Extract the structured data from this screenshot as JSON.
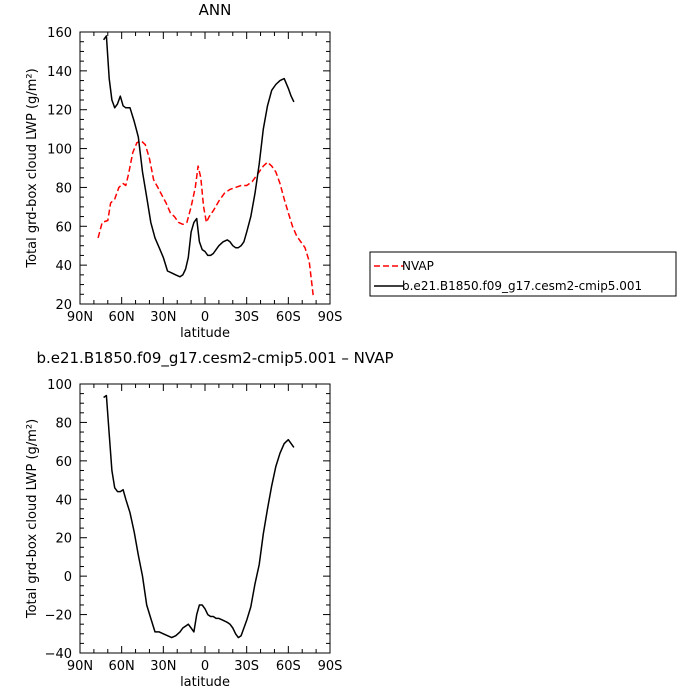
{
  "chart_data": [
    {
      "type": "line",
      "title": "ANN",
      "xlabel": "latitude",
      "ylabel": "Total grd-box cloud LWP (g/m²)",
      "xlim": [
        -90,
        90
      ],
      "ylim": [
        20,
        160
      ],
      "x_ticks": [
        {
          "value": -90,
          "label": "90N"
        },
        {
          "value": -60,
          "label": "60N"
        },
        {
          "value": -30,
          "label": "30N"
        },
        {
          "value": 0,
          "label": "0"
        },
        {
          "value": 30,
          "label": "30S"
        },
        {
          "value": 60,
          "label": "60S"
        },
        {
          "value": 90,
          "label": "90S"
        }
      ],
      "y_ticks": [
        20,
        40,
        60,
        80,
        100,
        120,
        140,
        160
      ],
      "legend_position": "right",
      "series": [
        {
          "name": "NVAP",
          "color": "#ff0000",
          "dash": "dashed",
          "x": [
            -77,
            -74,
            -70,
            -68,
            -65,
            -62,
            -59,
            -57,
            -55,
            -52,
            -49,
            -46,
            -43,
            -40,
            -37,
            -34,
            -31,
            -28,
            -25,
            -22,
            -19,
            -16,
            -13,
            -10,
            -7,
            -5,
            -3,
            -1,
            1,
            3,
            6,
            10,
            14,
            18,
            22,
            26,
            30,
            34,
            38,
            42,
            45,
            48,
            51,
            54,
            57,
            60,
            63,
            66,
            69,
            72,
            75,
            78
          ],
          "y": [
            54,
            62,
            63,
            72,
            74,
            80,
            82,
            81,
            87,
            98,
            103,
            104,
            102,
            95,
            84,
            80,
            76,
            72,
            67,
            65,
            62,
            61,
            62,
            70,
            80,
            91,
            85,
            70,
            62,
            65,
            68,
            73,
            77,
            79,
            80,
            81,
            81,
            83,
            87,
            91,
            93,
            91,
            88,
            82,
            74,
            67,
            60,
            55,
            52,
            49,
            42,
            24
          ]
        },
        {
          "name": "b.e21.B1850.f09_g17.cesm2-cmip5.001",
          "color": "#000000",
          "dash": "solid",
          "x": [
            -73,
            -71,
            -69,
            -67,
            -65,
            -63,
            -61,
            -59,
            -57,
            -54,
            -51,
            -48,
            -45,
            -42,
            -39,
            -36,
            -33,
            -30,
            -27,
            -24,
            -21,
            -18,
            -16,
            -14,
            -12,
            -10,
            -8,
            -6,
            -4,
            -2,
            0,
            2,
            4,
            6,
            8,
            10,
            13,
            16,
            18,
            20,
            22,
            24,
            26,
            28,
            30,
            33,
            36,
            39,
            42,
            45,
            48,
            51,
            54,
            57,
            60,
            62,
            64
          ],
          "y": [
            156,
            158,
            136,
            125,
            121,
            123,
            127,
            122,
            121,
            121,
            114,
            106,
            88,
            75,
            62,
            54,
            49,
            44,
            37,
            36,
            35,
            34,
            35,
            38,
            44,
            57,
            62,
            64,
            52,
            48,
            47,
            45,
            45,
            46,
            48,
            50,
            52,
            53,
            52,
            50,
            49,
            49,
            50,
            52,
            57,
            65,
            77,
            92,
            110,
            122,
            130,
            133,
            135,
            136,
            131,
            127,
            124
          ]
        }
      ]
    },
    {
      "type": "line",
      "title": "b.e21.B1850.f09_g17.cesm2-cmip5.001 – NVAP",
      "xlabel": "latitude",
      "ylabel": "Total grd-box cloud LWP (g/m²)",
      "xlim": [
        -90,
        90
      ],
      "ylim": [
        -40,
        100
      ],
      "x_ticks": [
        {
          "value": -90,
          "label": "90N"
        },
        {
          "value": -60,
          "label": "60N"
        },
        {
          "value": -30,
          "label": "30N"
        },
        {
          "value": 0,
          "label": "0"
        },
        {
          "value": 30,
          "label": "30S"
        },
        {
          "value": 60,
          "label": "60S"
        },
        {
          "value": 90,
          "label": "90S"
        }
      ],
      "y_ticks": [
        -40,
        -20,
        0,
        20,
        40,
        60,
        80,
        100
      ],
      "series": [
        {
          "color": "#000000",
          "dash": "solid",
          "x": [
            -73,
            -71,
            -69,
            -67,
            -65,
            -63,
            -61,
            -59,
            -57,
            -54,
            -51,
            -48,
            -45,
            -42,
            -39,
            -36,
            -33,
            -30,
            -27,
            -24,
            -21,
            -18,
            -16,
            -14,
            -12,
            -10,
            -8,
            -6,
            -4,
            -2,
            0,
            2,
            4,
            6,
            8,
            10,
            13,
            16,
            18,
            20,
            22,
            24,
            26,
            28,
            30,
            33,
            36,
            39,
            42,
            45,
            48,
            51,
            54,
            57,
            60,
            62,
            64
          ],
          "y": [
            93,
            94,
            74,
            55,
            46,
            44,
            44,
            45,
            40,
            33,
            23,
            11,
            0,
            -15,
            -22,
            -29,
            -29,
            -30,
            -31,
            -32,
            -31,
            -29,
            -27,
            -26,
            -25,
            -27,
            -29,
            -20,
            -15,
            -15,
            -17,
            -20,
            -21,
            -21,
            -22,
            -22,
            -23,
            -24,
            -25,
            -27,
            -30,
            -32,
            -31,
            -27,
            -23,
            -16,
            -4,
            6,
            22,
            35,
            47,
            57,
            64,
            69,
            71,
            69,
            67
          ]
        }
      ]
    }
  ]
}
